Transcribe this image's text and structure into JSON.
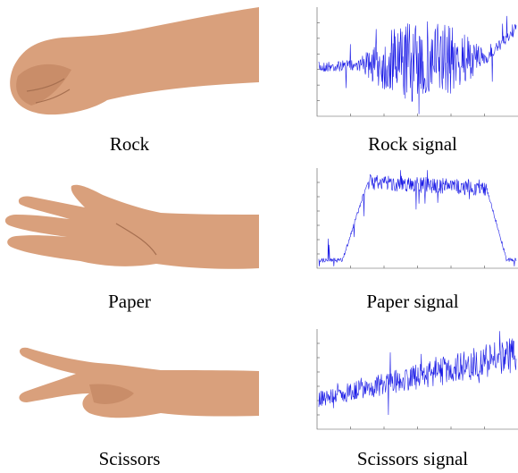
{
  "figure": {
    "panels": [
      {
        "label": "Rock",
        "signal_label": "Rock signal"
      },
      {
        "label": "Paper",
        "signal_label": "Paper signal"
      },
      {
        "label": "Scissors",
        "signal_label": "Scissors signal"
      }
    ]
  }
}
